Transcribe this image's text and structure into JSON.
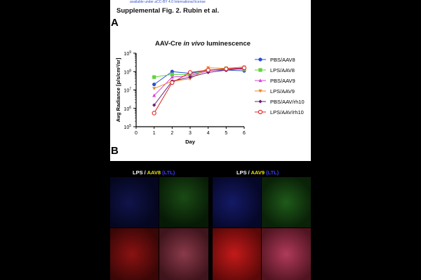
{
  "document": {
    "license_text": "available under aCC-BY 4.0 International license",
    "supplement_title": "Supplemental Fig. 2. Rubin et al.",
    "panel_a_letter": "A",
    "panel_b_letter": "B"
  },
  "chart_data": {
    "type": "line",
    "title_prefix": "AAV-Cre ",
    "title_italic": "in vivo",
    "title_suffix": " luminescence",
    "xlabel": "Day",
    "ylabel": "Avg Radiance [p/s/cm²/sr]",
    "x": [
      1,
      2,
      3,
      4,
      5,
      6
    ],
    "x_ticks": [
      "0",
      "1",
      "2",
      "3",
      "4",
      "5",
      "6"
    ],
    "xlim": [
      0,
      6
    ],
    "y_scale": "log",
    "ylim": [
      100000,
      1000000000
    ],
    "y_ticks": [
      {
        "value": 100000,
        "base": "10",
        "exp": "5"
      },
      {
        "value": 1000000,
        "base": "10",
        "exp": "6"
      },
      {
        "value": 10000000,
        "base": "10",
        "exp": "7"
      },
      {
        "value": 100000000,
        "base": "10",
        "exp": "8"
      },
      {
        "value": 1000000000,
        "base": "10",
        "exp": "9"
      }
    ],
    "legend_position": "right",
    "series": [
      {
        "name": "PBS/AAV8",
        "color": "#2a4fd6",
        "marker": "circle",
        "values": [
          20000000,
          100000000,
          80000000,
          120000000,
          120000000,
          110000000
        ]
      },
      {
        "name": "LPS/AAV8",
        "color": "#5fd33a",
        "marker": "square",
        "values": [
          50000000,
          70000000,
          70000000,
          110000000,
          150000000,
          130000000
        ]
      },
      {
        "name": "PBS/AAV9",
        "color": "#d648d6",
        "marker": "triangle",
        "values": [
          5000000,
          50000000,
          60000000,
          110000000,
          140000000,
          140000000
        ]
      },
      {
        "name": "LPS/AAV9",
        "color": "#e88a2a",
        "marker": "triangle-down",
        "values": [
          12000000,
          30000000,
          40000000,
          160000000,
          150000000,
          180000000
        ]
      },
      {
        "name": "PBS/AAV/rh10",
        "color": "#6a1f7a",
        "marker": "diamond",
        "values": [
          1500000,
          30000000,
          50000000,
          90000000,
          120000000,
          150000000
        ]
      },
      {
        "name": "LPS/AAV/rh10",
        "color": "#e02424",
        "marker": "circle-open",
        "values": [
          550000,
          25000000,
          90000000,
          120000000,
          140000000,
          160000000
        ]
      }
    ]
  },
  "micrographs": [
    {
      "prefix": "LPS / ",
      "aav": "AAV8",
      "ltl": " (LTL)"
    },
    {
      "prefix": "LPS / ",
      "aav": "AAV9",
      "ltl": " (LTL)"
    }
  ],
  "colors": {
    "label_white": "#ffffff",
    "label_yellow": "#f2e200",
    "label_blue": "#3a3aff"
  }
}
